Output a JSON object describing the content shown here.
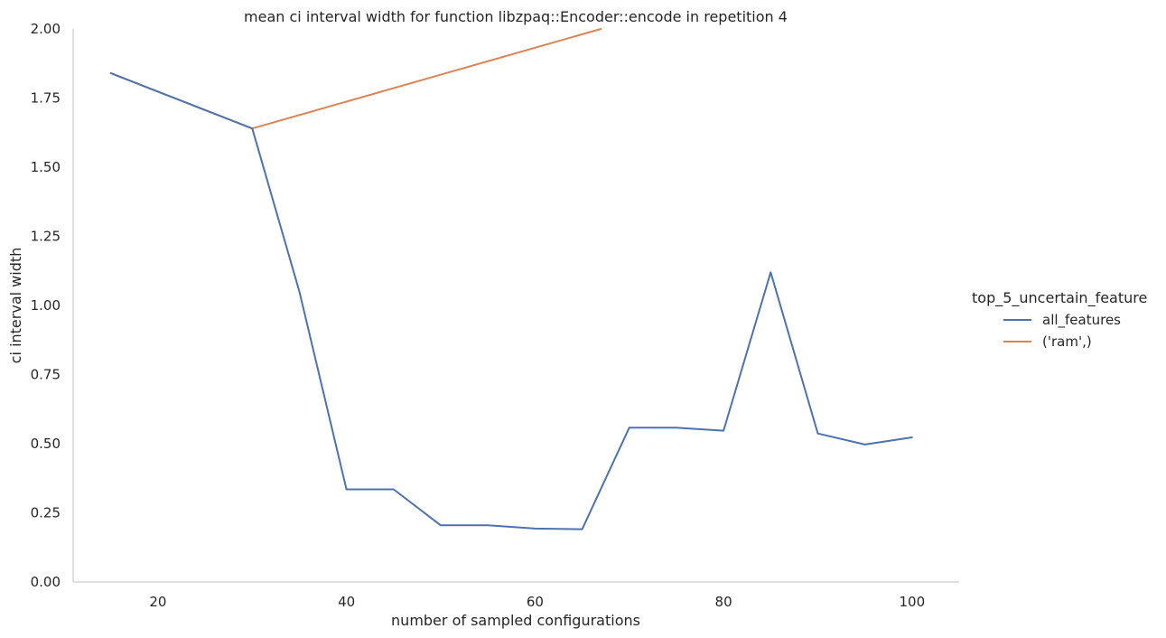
{
  "chart_data": {
    "type": "line",
    "title": "mean ci interval width for function libzpaq::Encoder::encode in repetition 4",
    "xlabel": "number of sampled configurations",
    "ylabel": "ci interval width",
    "xlim": [
      11,
      105
    ],
    "ylim": [
      0,
      2.0
    ],
    "xticks": [
      20,
      40,
      60,
      80,
      100
    ],
    "yticks": [
      "0.00",
      "0.25",
      "0.50",
      "0.75",
      "1.00",
      "1.25",
      "1.50",
      "1.75",
      "2.00"
    ],
    "grid": false,
    "legend": {
      "title": "top_5_uncertain_feature",
      "placement": "right"
    },
    "series": [
      {
        "name": "all_features",
        "color": "#4c72b0",
        "x": [
          15,
          30,
          35,
          40,
          45,
          50,
          55,
          60,
          65,
          70,
          75,
          80,
          85,
          90,
          95,
          100
        ],
        "values": [
          1.84,
          1.64,
          1.05,
          0.335,
          0.335,
          0.205,
          0.205,
          0.193,
          0.191,
          0.558,
          0.558,
          0.547,
          1.12,
          0.537,
          0.497,
          0.523
        ]
      },
      {
        "name": "('ram',)",
        "color": "#dd8452",
        "x": [
          15,
          30,
          67
        ],
        "values": [
          1.84,
          1.64,
          2.0
        ]
      }
    ]
  }
}
